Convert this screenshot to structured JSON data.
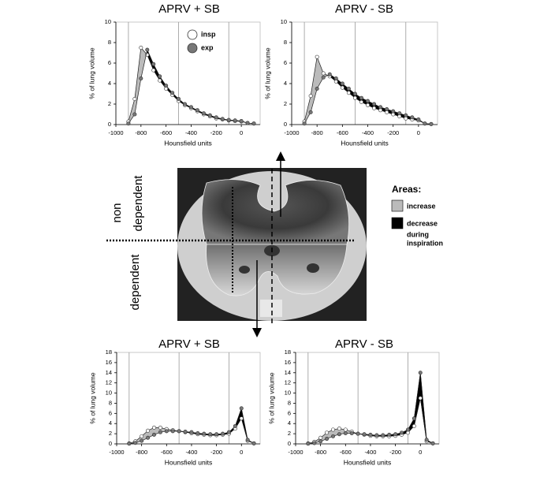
{
  "chart_data": [
    {
      "type": "line",
      "title": "APRV + SB",
      "x_label": "Hounsfield units",
      "y_label": "% of lung volume",
      "x": [
        -900,
        -850,
        -800,
        -750,
        -700,
        -650,
        -600,
        -550,
        -500,
        -450,
        -400,
        -350,
        -300,
        -250,
        -200,
        -150,
        -100,
        -50,
        0,
        50,
        100
      ],
      "series": [
        {
          "name": "insp",
          "color": "#ffffff",
          "values": [
            0.3,
            2.5,
            7.5,
            6.8,
            5.3,
            4.3,
            3.5,
            2.9,
            2.3,
            1.9,
            1.6,
            1.3,
            1.0,
            0.8,
            0.6,
            0.5,
            0.4,
            0.35,
            0.3,
            0.15,
            0.1
          ]
        },
        {
          "name": "exp",
          "color": "#777777",
          "values": [
            0.1,
            1.0,
            4.5,
            7.3,
            5.9,
            4.7,
            3.8,
            3.1,
            2.5,
            2.0,
            1.7,
            1.4,
            1.1,
            0.9,
            0.7,
            0.55,
            0.45,
            0.4,
            0.35,
            0.15,
            0.1
          ]
        }
      ],
      "xlim": [
        -1000,
        150
      ],
      "xticks": [
        -1000,
        -800,
        -600,
        -400,
        -200,
        0
      ],
      "ylim": [
        0,
        10
      ],
      "yticks": [
        0,
        2,
        4,
        6,
        8,
        10
      ],
      "dividers": [
        -900,
        -500,
        -100
      ],
      "legend": "top"
    },
    {
      "type": "line",
      "title": "APRV - SB",
      "x_label": "Hounsfield units",
      "y_label": "% of lung volume",
      "x": [
        -900,
        -850,
        -800,
        -750,
        -700,
        -650,
        -600,
        -550,
        -500,
        -450,
        -400,
        -350,
        -300,
        -250,
        -200,
        -150,
        -100,
        -50,
        0,
        50,
        100
      ],
      "series": [
        {
          "name": "insp",
          "color": "#ffffff",
          "values": [
            0.3,
            2.8,
            6.6,
            5.0,
            4.7,
            4.2,
            3.6,
            3.1,
            2.6,
            2.2,
            1.9,
            1.6,
            1.4,
            1.2,
            1.0,
            0.8,
            0.6,
            0.5,
            0.4,
            0.1,
            0.05
          ]
        },
        {
          "name": "exp",
          "color": "#777777",
          "values": [
            0.1,
            1.2,
            3.5,
            4.6,
            4.9,
            4.5,
            4.0,
            3.5,
            3.0,
            2.6,
            2.3,
            2.0,
            1.7,
            1.5,
            1.3,
            1.1,
            0.9,
            0.7,
            0.5,
            0.1,
            0.05
          ]
        }
      ],
      "xlim": [
        -1000,
        150
      ],
      "xticks": [
        -1000,
        -800,
        -600,
        -400,
        -200,
        0
      ],
      "ylim": [
        0,
        10
      ],
      "yticks": [
        0,
        2,
        4,
        6,
        8,
        10
      ],
      "dividers": [
        -900,
        -500,
        -100
      ]
    },
    {
      "type": "line",
      "title": "APRV + SB",
      "x_label": "Hounsfield units",
      "y_label": "% of lung volume",
      "x": [
        -900,
        -850,
        -800,
        -750,
        -700,
        -650,
        -600,
        -550,
        -500,
        -450,
        -400,
        -350,
        -300,
        -250,
        -200,
        -150,
        -100,
        -50,
        0,
        50,
        100
      ],
      "series": [
        {
          "name": "insp",
          "color": "#ffffff",
          "values": [
            0.1,
            0.5,
            1.5,
            2.6,
            3.2,
            3.2,
            2.9,
            2.7,
            2.5,
            2.3,
            2.1,
            1.9,
            1.8,
            1.7,
            1.7,
            1.8,
            2.0,
            3.0,
            5.0,
            0.6,
            0.1
          ]
        },
        {
          "name": "exp",
          "color": "#777777",
          "values": [
            0.05,
            0.2,
            0.6,
            1.2,
            1.8,
            2.3,
            2.5,
            2.5,
            2.5,
            2.4,
            2.3,
            2.1,
            2.0,
            1.9,
            1.9,
            2.0,
            2.3,
            3.5,
            7.0,
            0.8,
            0.1
          ]
        }
      ],
      "xlim": [
        -1000,
        150
      ],
      "xticks": [
        -1000,
        -800,
        -600,
        -400,
        -200,
        0
      ],
      "ylim": [
        0,
        18
      ],
      "yticks": [
        0,
        2,
        4,
        6,
        8,
        10,
        12,
        14,
        16,
        18
      ],
      "dividers": [
        -900,
        -500,
        -100
      ]
    },
    {
      "type": "line",
      "title": "APRV - SB",
      "x_label": "Hounsfield units",
      "y_label": "% of lung volume",
      "x": [
        -900,
        -850,
        -800,
        -750,
        -700,
        -650,
        -600,
        -550,
        -500,
        -450,
        -400,
        -350,
        -300,
        -250,
        -200,
        -150,
        -100,
        -50,
        0,
        50,
        100
      ],
      "series": [
        {
          "name": "insp",
          "color": "#ffffff",
          "values": [
            0.1,
            0.4,
            1.2,
            2.2,
            2.8,
            3.0,
            2.8,
            2.4,
            2.0,
            1.8,
            1.6,
            1.5,
            1.5,
            1.5,
            1.6,
            1.8,
            2.2,
            3.5,
            9.0,
            0.5,
            0.1
          ]
        },
        {
          "name": "exp",
          "color": "#777777",
          "values": [
            0.05,
            0.15,
            0.5,
            1.0,
            1.5,
            1.9,
            2.1,
            2.1,
            2.0,
            1.9,
            1.8,
            1.7,
            1.7,
            1.8,
            1.9,
            2.2,
            2.8,
            5.0,
            14.0,
            0.8,
            0.1
          ]
        }
      ],
      "xlim": [
        -1000,
        150
      ],
      "xticks": [
        -1000,
        -800,
        -600,
        -400,
        -200,
        0
      ],
      "ylim": [
        0,
        18
      ],
      "yticks": [
        0,
        2,
        4,
        6,
        8,
        10,
        12,
        14,
        16,
        18
      ],
      "dividers": [
        -900,
        -500,
        -100
      ]
    }
  ],
  "image_labels": {
    "non_dependent": [
      "non",
      "dependent"
    ],
    "dependent": "dependent"
  },
  "areas_legend": {
    "title": "Areas:",
    "items": [
      {
        "label": "increase",
        "color": "#bbbbbb"
      },
      {
        "label": "decrease",
        "color": "#000000"
      }
    ],
    "note": [
      "during",
      "inspiration"
    ]
  }
}
